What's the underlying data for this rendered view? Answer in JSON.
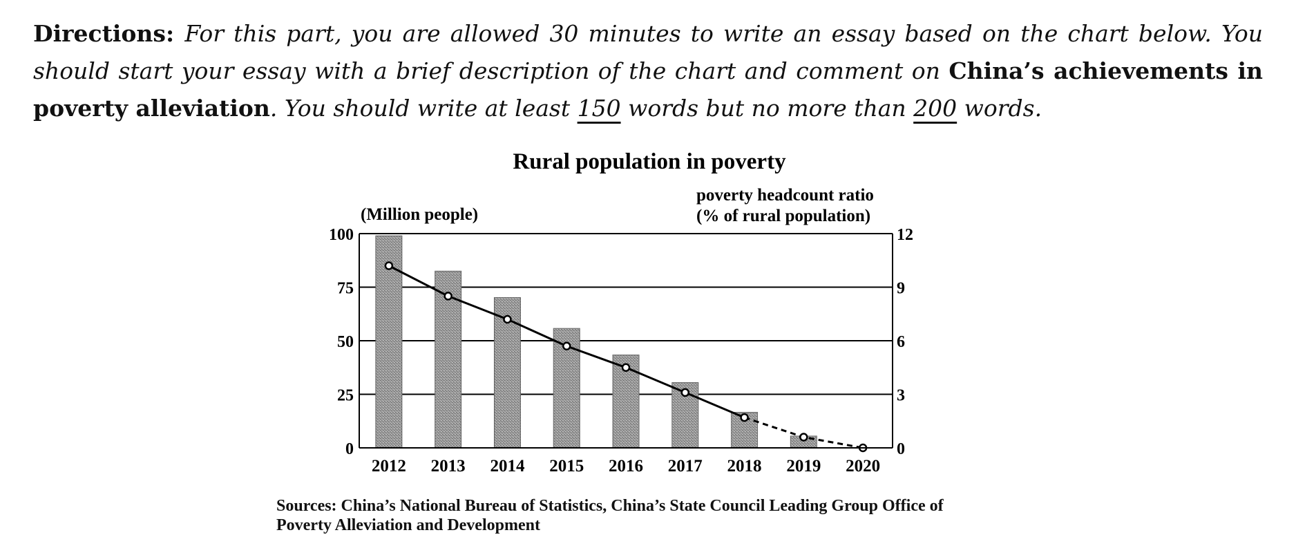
{
  "directions": {
    "lead": "Directions",
    "sep": ": ",
    "part1": "For this part, you are allowed 30 minutes to write an essay based on the chart below. You should start your essay with a brief description of the chart and comment on ",
    "bold_topic": "China’s achievements in poverty alleviation",
    "part2": ". You should write at least ",
    "min_words": "150",
    "part3": " words but no more than ",
    "max_words": "200",
    "part4": " words."
  },
  "chart_data": {
    "type": "bar",
    "title": "Rural population in poverty",
    "categories": [
      "2012",
      "2013",
      "2014",
      "2015",
      "2016",
      "2017",
      "2018",
      "2019",
      "2020"
    ],
    "series": [
      {
        "values": [
          98.99,
          82.49,
          70.17,
          55.75,
          43.35,
          30.46,
          16.6,
          5.51,
          0
        ],
        "axis": "left"
      },
      {
        "type": "line",
        "values": [
          10.2,
          8.5,
          7.2,
          5.7,
          4.5,
          3.1,
          1.7,
          0.6,
          0
        ],
        "axis": "right",
        "dashed_from_index": 6,
        "marker": "open-circle",
        "color": "#000000"
      }
    ],
    "ylabel_left": "(Million people)",
    "ylabel_right": [
      "poverty headcount ratio",
      "(% of rural population)"
    ],
    "ylim_left": [
      0,
      100
    ],
    "yticks_left": [
      "0",
      "25",
      "50",
      "75",
      "100"
    ],
    "ylim_right": [
      0,
      12
    ],
    "yticks_right": [
      "0",
      "3",
      "6",
      "9",
      "12"
    ],
    "grid": true,
    "legend": "none",
    "bar_color": "#999999"
  },
  "sources": {
    "line1": "Sources: China’s National Bureau of Statistics, China’s State Council Leading Group Office of",
    "line2": "Poverty Alleviation and Development"
  }
}
